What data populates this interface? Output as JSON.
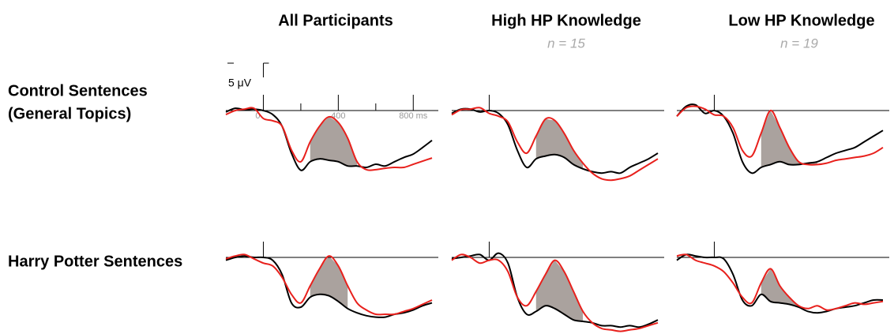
{
  "columns": [
    {
      "title": "All Participants"
    },
    {
      "title": "High HP Knowledge",
      "subtitle": "n = 15"
    },
    {
      "title": "Low HP Knowledge",
      "subtitle": "n = 19"
    }
  ],
  "rows": [
    {
      "label_lines": [
        "Control Sentences",
        "(General Topics)"
      ]
    },
    {
      "label_lines": [
        "Harry Potter Sentences"
      ]
    }
  ],
  "chart_data": [
    {
      "type": "line",
      "xlim": [
        -200,
        900
      ],
      "ylim": [
        -8,
        27
      ],
      "y_inverted": true,
      "xticks": [
        0,
        400,
        {
          "value": 800,
          "label": "800 ms"
        }
      ],
      "xminor_ticks": [
        200,
        600
      ],
      "scale_bar": {
        "value": 5,
        "label": "5 μV"
      },
      "shade_xrange": [
        250,
        500
      ],
      "shade_color": "#aaa29e",
      "x": [
        -200,
        -150,
        -100,
        -50,
        0,
        50,
        100,
        150,
        200,
        250,
        300,
        350,
        400,
        450,
        500,
        550,
        600,
        650,
        700,
        750,
        800,
        850,
        900
      ],
      "series": [
        {
          "color": "#000000",
          "values": [
            0.5,
            -0.8,
            -0.3,
            -0.5,
            0,
            1.4,
            5.5,
            15,
            21,
            18,
            17,
            17.5,
            18,
            19.5,
            19.5,
            20,
            18.9,
            19.5,
            18,
            16.5,
            15.3,
            13,
            10.5
          ]
        },
        {
          "color": "#e8201c",
          "values": [
            1.4,
            0,
            -0.5,
            -0.8,
            2.8,
            3.6,
            5.5,
            13.9,
            18,
            11,
            5.5,
            2.2,
            4.2,
            9.7,
            18,
            20.8,
            20.8,
            20.3,
            20,
            20,
            18.9,
            17.8,
            16.7
          ]
        }
      ]
    },
    {
      "type": "line",
      "xlim": [
        -200,
        900
      ],
      "ylim": [
        -8,
        27
      ],
      "y_inverted": true,
      "shade_xrange": [
        250,
        500
      ],
      "shade_color": "#aaa29e",
      "x": [
        -200,
        -150,
        -100,
        -50,
        0,
        50,
        100,
        150,
        200,
        250,
        300,
        350,
        400,
        450,
        500,
        550,
        600,
        650,
        700,
        750,
        800,
        850,
        900
      ],
      "series": [
        {
          "color": "#000000",
          "values": [
            1,
            -0.5,
            -0.5,
            0.5,
            0,
            1,
            5,
            14,
            20,
            17,
            16,
            15.5,
            16.5,
            19,
            20.5,
            21.5,
            22,
            21.5,
            22,
            20,
            18.5,
            17,
            15
          ]
        },
        {
          "color": "#e8201c",
          "values": [
            1.5,
            -0.3,
            -0.5,
            -1,
            1,
            2,
            4,
            11,
            15,
            9,
            3,
            3.5,
            8,
            14,
            18.5,
            22,
            24,
            24.5,
            24,
            23,
            21,
            19,
            17
          ]
        }
      ]
    },
    {
      "type": "line",
      "xlim": [
        -200,
        900
      ],
      "ylim": [
        -8,
        27
      ],
      "y_inverted": true,
      "shade_xrange": [
        250,
        550
      ],
      "shade_color": "#aaa29e",
      "x": [
        -200,
        -150,
        -100,
        -50,
        0,
        50,
        100,
        150,
        200,
        250,
        300,
        350,
        400,
        450,
        500,
        550,
        600,
        650,
        700,
        750,
        800,
        850,
        900
      ],
      "series": [
        {
          "color": "#000000",
          "values": [
            2,
            -1.5,
            -2,
            1,
            0,
            2,
            8,
            18,
            22,
            20,
            19,
            18,
            19,
            19,
            18.5,
            18,
            16.5,
            15,
            14,
            13,
            11,
            9,
            7
          ]
        },
        {
          "color": "#e8201c",
          "values": [
            2,
            -1,
            -1.5,
            -0.5,
            1.5,
            2,
            6,
            14,
            16,
            8,
            0,
            6,
            13,
            18,
            19,
            19,
            18.5,
            17.5,
            17,
            16.5,
            16,
            15,
            13
          ]
        }
      ]
    },
    {
      "type": "line",
      "xlim": [
        -200,
        900
      ],
      "ylim": [
        -8,
        27
      ],
      "y_inverted": true,
      "shade_xrange": [
        250,
        450
      ],
      "shade_color": "#aaa29e",
      "x": [
        -200,
        -150,
        -100,
        -50,
        0,
        50,
        100,
        150,
        200,
        250,
        300,
        350,
        400,
        450,
        500,
        550,
        600,
        650,
        700,
        750,
        800,
        850,
        900
      ],
      "series": [
        {
          "color": "#000000",
          "values": [
            1,
            0,
            -0.5,
            0,
            0,
            1,
            6,
            16,
            17.5,
            14,
            13,
            13.5,
            15.5,
            18,
            19.5,
            20.5,
            21,
            21,
            20,
            19.5,
            18.5,
            17,
            16
          ]
        },
        {
          "color": "#e8201c",
          "values": [
            0.5,
            -0.5,
            -1,
            0.5,
            2,
            3,
            7,
            13,
            16,
            10,
            4,
            -0.5,
            3,
            10,
            16,
            18.5,
            20,
            20,
            20,
            19,
            18,
            16.5,
            15
          ]
        }
      ]
    },
    {
      "type": "line",
      "xlim": [
        -200,
        900
      ],
      "ylim": [
        -8,
        27
      ],
      "y_inverted": true,
      "shade_xrange": [
        250,
        500
      ],
      "shade_color": "#aaa29e",
      "x": [
        -200,
        -150,
        -100,
        -50,
        0,
        50,
        100,
        150,
        200,
        250,
        300,
        350,
        400,
        450,
        500,
        550,
        600,
        650,
        700,
        750,
        800,
        850,
        900
      ],
      "series": [
        {
          "color": "#000000",
          "values": [
            0.5,
            0,
            -0.5,
            -1,
            1,
            -1.5,
            2,
            14,
            20,
            19,
            17,
            18,
            20,
            22,
            22.5,
            23,
            24,
            24,
            24.5,
            24,
            24.5,
            23.5,
            22
          ]
        },
        {
          "color": "#e8201c",
          "values": [
            1,
            -1,
            0,
            2,
            1,
            1,
            5,
            14,
            17,
            12,
            6,
            1,
            5,
            12,
            19,
            23,
            25,
            25.5,
            26,
            25.5,
            25,
            24,
            23
          ]
        }
      ]
    },
    {
      "type": "line",
      "xlim": [
        -200,
        900
      ],
      "ylim": [
        -8,
        27
      ],
      "y_inverted": true,
      "shade_xrange": [
        250,
        450
      ],
      "shade_color": "#aaa29e",
      "x": [
        -200,
        -150,
        -100,
        -50,
        0,
        50,
        100,
        150,
        200,
        250,
        300,
        350,
        400,
        450,
        500,
        550,
        600,
        650,
        700,
        750,
        800,
        850,
        900
      ],
      "series": [
        {
          "color": "#000000",
          "values": [
            1,
            -1,
            -0.5,
            0,
            0,
            0.5,
            6,
            15,
            17,
            13,
            15.5,
            16,
            16.5,
            17.5,
            19,
            19.5,
            19,
            18,
            17.5,
            17,
            16,
            15,
            15
          ]
        },
        {
          "color": "#e8201c",
          "values": [
            -0.5,
            -1,
            1,
            2,
            3,
            5,
            9,
            14,
            16,
            9,
            4,
            10,
            14,
            17,
            18,
            17,
            18.5,
            18,
            17,
            16,
            16.5,
            16,
            15.5
          ]
        }
      ]
    }
  ]
}
